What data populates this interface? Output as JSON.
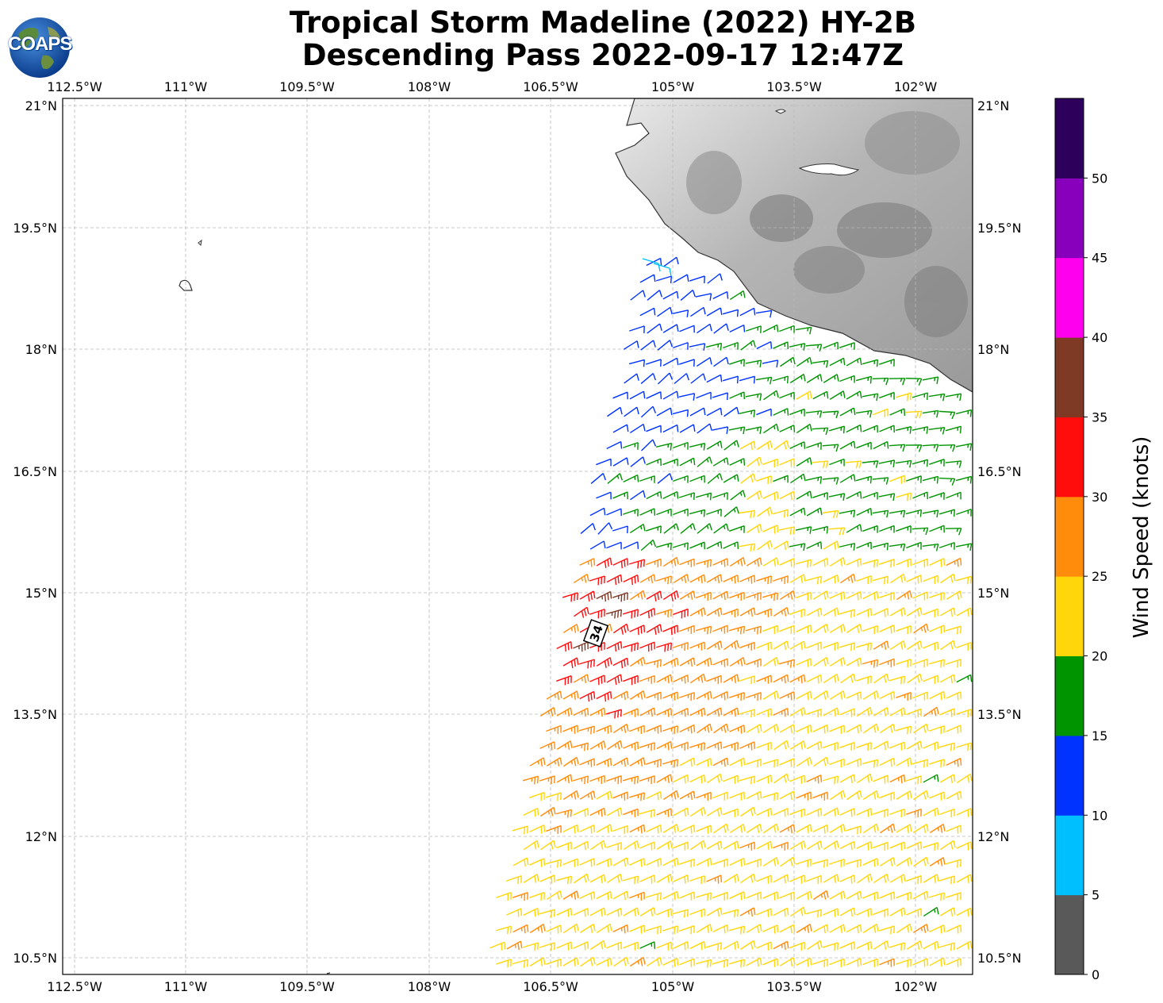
{
  "title_line1": "Tropical Storm Madeline (2022) HY-2B",
  "title_line2": "Descending Pass 2022-09-17 12:47Z",
  "logo_text": "COAPS",
  "lon_ticks": [
    "112.5°W",
    "111°W",
    "109.5°W",
    "108°W",
    "106.5°W",
    "105°W",
    "103.5°W",
    "102°W"
  ],
  "lat_ticks": [
    "21°N",
    "19.5°N",
    "18°N",
    "16.5°N",
    "15°N",
    "13.5°N",
    "12°N",
    "10.5°N"
  ],
  "colorbar": {
    "label": "Wind Speed (knots)",
    "ticks": [
      "0",
      "5",
      "10",
      "15",
      "20",
      "25",
      "30",
      "35",
      "40",
      "45",
      "50"
    ],
    "colors": [
      "#595959",
      "#00bfff",
      "#0033ff",
      "#009400",
      "#ffd60a",
      "#ff8c0a",
      "#ff0d0d",
      "#7f3a26",
      "#ff00ee",
      "#8800bb",
      "#2d005c"
    ]
  },
  "storm_marker": "34",
  "chart_data": {
    "type": "wind-barb map",
    "lon_range": [
      "112.5°W",
      "101.3°W"
    ],
    "lat_range": [
      "10.3°N",
      "21.1°N"
    ],
    "grid": true,
    "colorbar_ticks_knots": [
      0,
      5,
      10,
      15,
      20,
      25,
      30,
      35,
      40,
      45,
      50
    ]
  }
}
